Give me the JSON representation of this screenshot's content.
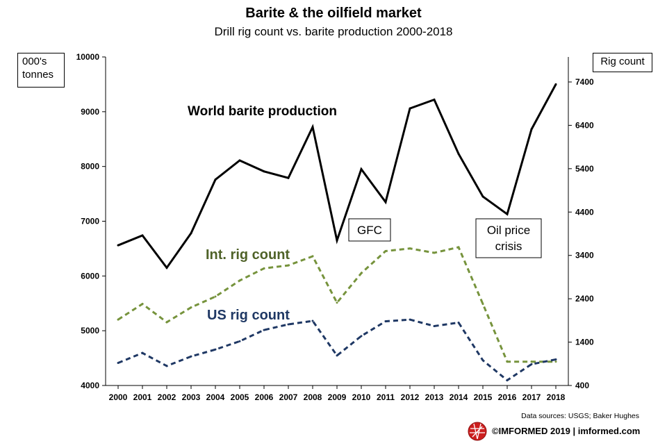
{
  "chart_data": {
    "type": "line",
    "title": "Barite & the oilfield market",
    "subtitle": "Drill rig count vs. barite production 2000-2018",
    "categories": [
      "2000",
      "2001",
      "2002",
      "2003",
      "2004",
      "2005",
      "2006",
      "2007",
      "2008",
      "2009",
      "2010",
      "2011",
      "2012",
      "2013",
      "2014",
      "2015",
      "2016",
      "2017",
      "2018"
    ],
    "y_left": {
      "label": "000's tonnes",
      "range": [
        4000,
        10000
      ],
      "ticks": [
        4000,
        5000,
        6000,
        7000,
        8000,
        9000,
        10000
      ]
    },
    "y_right": {
      "label": "Rig count",
      "range": [
        400,
        8000
      ],
      "ticks": [
        400,
        1400,
        2400,
        3400,
        4400,
        5400,
        6400,
        7400
      ]
    },
    "series": [
      {
        "name": "World barite production",
        "axis": "left",
        "color": "#000000",
        "style": "solid",
        "values": [
          6560,
          6740,
          6150,
          6780,
          7760,
          8110,
          7910,
          7790,
          8720,
          6650,
          7950,
          7350,
          9060,
          9220,
          8230,
          7450,
          7130,
          8680,
          9500
        ]
      },
      {
        "name": "Int. rig count",
        "axis": "right",
        "color": "#76933c",
        "style": "dashed",
        "values": [
          1920,
          2280,
          1860,
          2200,
          2450,
          2820,
          3100,
          3170,
          3380,
          2310,
          2990,
          3500,
          3560,
          3460,
          3590,
          2280,
          950,
          950,
          950
        ]
      },
      {
        "name": "US rig count",
        "axis": "right",
        "color": "#1f3864",
        "style": "dashed",
        "values": [
          920,
          1150,
          850,
          1070,
          1230,
          1420,
          1680,
          1810,
          1890,
          1090,
          1540,
          1880,
          1920,
          1770,
          1850,
          980,
          520,
          890,
          1000
        ]
      }
    ],
    "annotations": [
      {
        "text": "GFC",
        "boxed": true
      },
      {
        "text": "Oil price crisis",
        "boxed": true
      }
    ],
    "grid": false,
    "legend": "inline labels"
  },
  "footer": {
    "sources": "Data sources: USGS; Baker Hughes",
    "brand": "©IMFORMED 2019  | imformed.com",
    "brand_color": "#cc1f1f"
  }
}
